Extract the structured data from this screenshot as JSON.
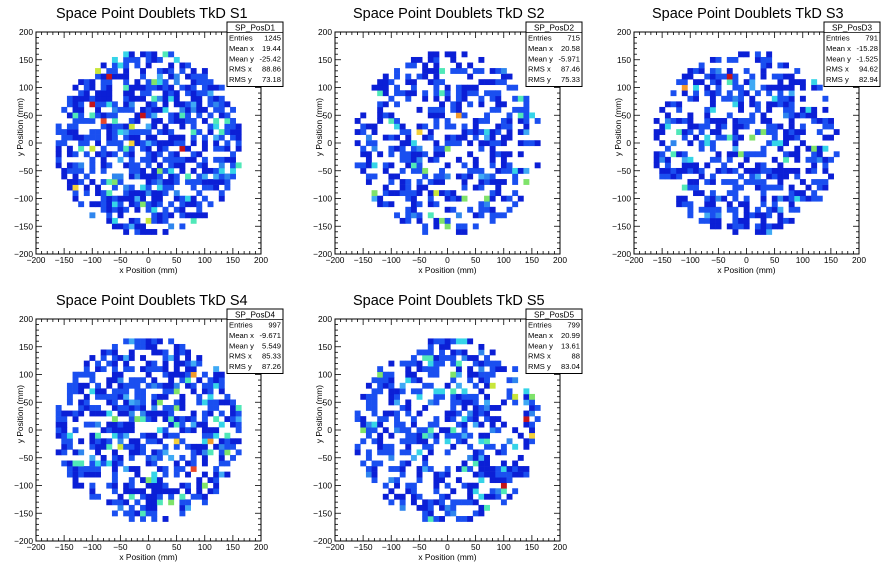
{
  "chart_data": [
    {
      "type": "heatmap",
      "title": "Space Point Doublets TkD S1",
      "xlabel": "x Position (mm)",
      "ylabel": "y Position (mm)",
      "xlim": [
        -200,
        200
      ],
      "ylim": [
        -200,
        200
      ],
      "xticks": [
        "−200",
        "−150",
        "−100",
        "−50",
        "0",
        "50",
        "100",
        "150",
        "200"
      ],
      "yticks": [
        "−200",
        "−150",
        "−100",
        "−50",
        "0",
        "50",
        "100",
        "150",
        "200"
      ],
      "stats": {
        "name": "SP_PosD1",
        "rows": [
          {
            "label": "Entries",
            "value": "1245"
          },
          {
            "label": "Mean x",
            "value": "19.44"
          },
          {
            "label": "Mean y",
            "value": "-25.42"
          },
          {
            "label": "RMS x",
            "value": "88.86"
          },
          {
            "label": "RMS y",
            "value": "73.18"
          }
        ]
      },
      "bin_width_mm": 10,
      "occupied_radius_mm": 165,
      "fill_fraction": 0.62,
      "hot_fraction": 0.18,
      "seed": 11
    },
    {
      "type": "heatmap",
      "title": "Space Point Doublets TkD S2",
      "xlabel": "x Position (mm)",
      "ylabel": "y Position (mm)",
      "xlim": [
        -200,
        200
      ],
      "ylim": [
        -200,
        200
      ],
      "xticks": [
        "−200",
        "−150",
        "−100",
        "−50",
        "0",
        "50",
        "100",
        "150",
        "200"
      ],
      "yticks": [
        "−200",
        "−150",
        "−100",
        "−50",
        "0",
        "50",
        "100",
        "150",
        "200"
      ],
      "stats": {
        "name": "SP_PosD2",
        "rows": [
          {
            "label": "Entries",
            "value": "715"
          },
          {
            "label": "Mean x",
            "value": "20.58"
          },
          {
            "label": "Mean y",
            "value": "-5.971"
          },
          {
            "label": "RMS x",
            "value": "87.46"
          },
          {
            "label": "RMS y",
            "value": "75.33"
          }
        ]
      },
      "bin_width_mm": 10,
      "occupied_radius_mm": 165,
      "fill_fraction": 0.5,
      "hot_fraction": 0.12,
      "seed": 23
    },
    {
      "type": "heatmap",
      "title": "Space Point Doublets TkD S3",
      "xlabel": "x Position (mm)",
      "ylabel": "y Position (mm)",
      "xlim": [
        -200,
        200
      ],
      "ylim": [
        -200,
        200
      ],
      "xticks": [
        "−200",
        "−150",
        "−100",
        "−50",
        "0",
        "50",
        "100",
        "150",
        "200"
      ],
      "yticks": [
        "−200",
        "−150",
        "−100",
        "−50",
        "0",
        "50",
        "100",
        "150",
        "200"
      ],
      "stats": {
        "name": "SP_PosD3",
        "rows": [
          {
            "label": "Entries",
            "value": "791"
          },
          {
            "label": "Mean x",
            "value": "-15.28"
          },
          {
            "label": "Mean y",
            "value": "-1.525"
          },
          {
            "label": "RMS x",
            "value": "94.62"
          },
          {
            "label": "RMS y",
            "value": "82.94"
          }
        ]
      },
      "bin_width_mm": 10,
      "occupied_radius_mm": 165,
      "fill_fraction": 0.52,
      "hot_fraction": 0.1,
      "seed": 37
    },
    {
      "type": "heatmap",
      "title": "Space Point Doublets TkD S4",
      "xlabel": "x Position (mm)",
      "ylabel": "y Position (mm)",
      "xlim": [
        -200,
        200
      ],
      "ylim": [
        -200,
        200
      ],
      "xticks": [
        "−200",
        "−150",
        "−100",
        "−50",
        "0",
        "50",
        "100",
        "150",
        "200"
      ],
      "yticks": [
        "−200",
        "−150",
        "−100",
        "−50",
        "0",
        "50",
        "100",
        "150",
        "200"
      ],
      "stats": {
        "name": "SP_PosD4",
        "rows": [
          {
            "label": "Entries",
            "value": "997"
          },
          {
            "label": "Mean x",
            "value": "-9.671"
          },
          {
            "label": "Mean y",
            "value": "5.549"
          },
          {
            "label": "RMS x",
            "value": "85.33"
          },
          {
            "label": "RMS y",
            "value": "87.26"
          }
        ]
      },
      "bin_width_mm": 10,
      "occupied_radius_mm": 165,
      "fill_fraction": 0.56,
      "hot_fraction": 0.15,
      "seed": 53
    },
    {
      "type": "heatmap",
      "title": "Space Point Doublets TkD S5",
      "xlabel": "x Position (mm)",
      "ylabel": "y Position (mm)",
      "xlim": [
        -200,
        200
      ],
      "ylim": [
        -200,
        200
      ],
      "xticks": [
        "−200",
        "−150",
        "−100",
        "−50",
        "0",
        "50",
        "100",
        "150",
        "200"
      ],
      "yticks": [
        "−200",
        "−150",
        "−100",
        "−50",
        "0",
        "50",
        "100",
        "150",
        "200"
      ],
      "stats": {
        "name": "SP_PosD5",
        "rows": [
          {
            "label": "Entries",
            "value": "799"
          },
          {
            "label": "Mean x",
            "value": "20.99"
          },
          {
            "label": "Mean y",
            "value": "13.61"
          },
          {
            "label": "RMS x",
            "value": "88"
          },
          {
            "label": "RMS y",
            "value": "83.04"
          }
        ]
      },
      "bin_width_mm": 10,
      "occupied_radius_mm": 165,
      "fill_fraction": 0.5,
      "hot_fraction": 0.14,
      "seed": 71
    }
  ],
  "colors": {
    "background": "#ffffff",
    "frame": "#000000",
    "palette": [
      "#0b1fd6",
      "#1a4ff0",
      "#2f86ee",
      "#3fa9f5",
      "#35d4e8",
      "#50e8b8",
      "#7fe36a",
      "#c8e63a",
      "#f4d03a",
      "#f39a2b",
      "#e8462a",
      "#c4131a"
    ]
  }
}
